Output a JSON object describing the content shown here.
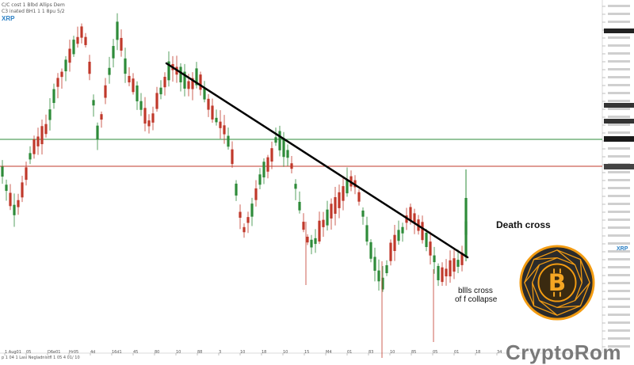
{
  "chart": {
    "header_line1": "C/C cost 1 Blbd Allips Dem",
    "header_line2": "C3 inated BH1 1 1 8pu 5/2",
    "symbol": "XRP",
    "right_symbol": "XRP"
  },
  "annotations": {
    "death_cross": "Death cross",
    "bulls_cross_line1": "bllls cross",
    "bulls_cross_line2": "of f collapse"
  },
  "branding": {
    "name": "CryptoRom",
    "logo": "bitcoin-logo-icon"
  },
  "footer": {
    "text": "p 1 04 1 Lasi Negladnistfl 1 05 4 01/ 10"
  },
  "colors": {
    "up": "#2e8b3a",
    "down": "#c0392b",
    "green_level": "#2e8b3a",
    "red_level": "#c0392b",
    "trendline": "#000000",
    "logo_orange": "#f39c12"
  },
  "chart_data": {
    "type": "candlestick",
    "series_name": "XRP",
    "x_tick_labels": [
      "1 Aug01",
      "05",
      "D6e01",
      "Hr05",
      "4d",
      "16d1",
      "45",
      "80",
      "10",
      "88",
      "3",
      "10",
      "18",
      "10",
      "15",
      "M4",
      "01",
      "83",
      "10",
      "85",
      "05",
      "01",
      "18",
      "34"
    ],
    "levels": {
      "green_horizontal": true,
      "red_horizontal": true
    },
    "trendline": {
      "label": "Death cross",
      "direction": "descending"
    }
  }
}
